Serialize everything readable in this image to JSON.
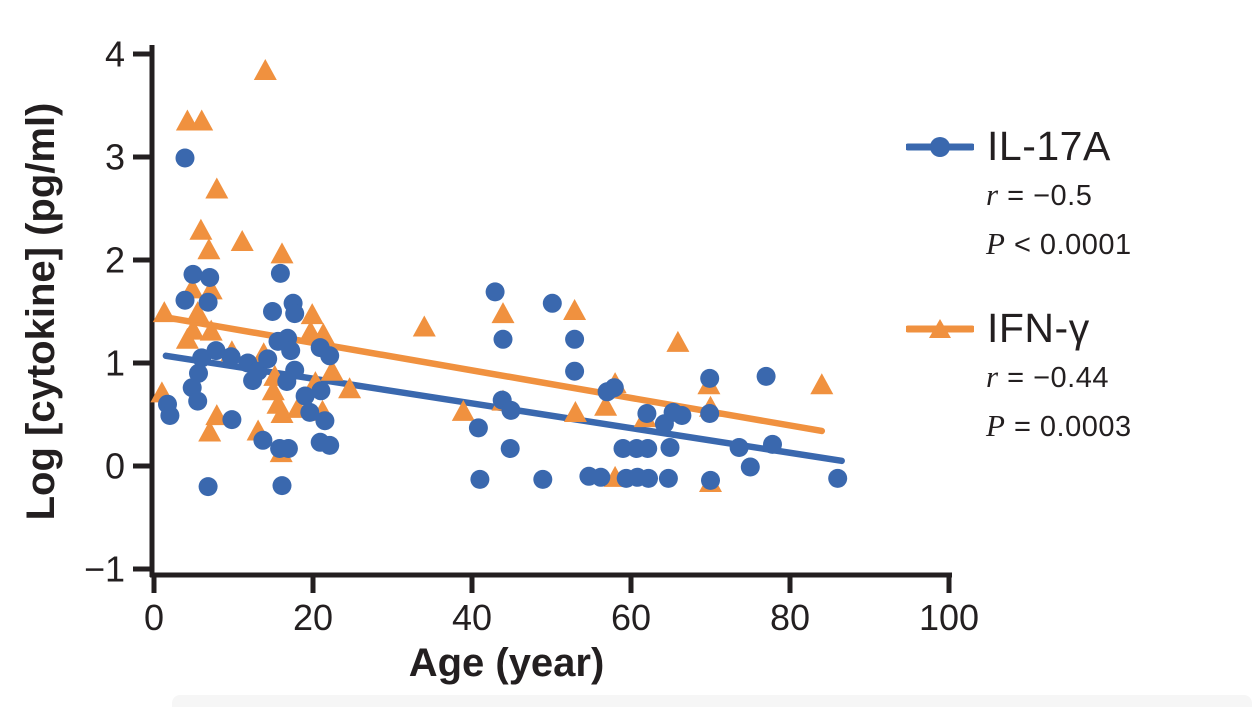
{
  "figure": {
    "background_color": "#ffffff",
    "footer_strip_color": "#f6f6f6"
  },
  "chart_data": {
    "type": "scatter",
    "title": "",
    "xlabel": "Age (year)",
    "ylabel": "Log [cytokine] (pg/ml)",
    "xlim": [
      0,
      100
    ],
    "ylim": [
      -1,
      4
    ],
    "x_ticks": [
      0,
      20,
      40,
      60,
      80,
      100
    ],
    "y_ticks": [
      -1,
      0,
      1,
      2,
      3,
      4
    ],
    "grid": false,
    "legend_position": "right",
    "axis_color": "#231f20",
    "series": [
      {
        "name": "IL-17A",
        "marker": "circle",
        "color": "#3a68ae",
        "stat_r_label": "r",
        "stat_r_value": "= −0.5",
        "stat_p_label": "P",
        "stat_p_value": "< 0.0001",
        "trend_line": {
          "x1": 1.5,
          "y1": 1.07,
          "x2": 86.5,
          "y2": 0.05
        },
        "points": [
          [
            3.9,
            2.99
          ],
          [
            4.9,
            1.86
          ],
          [
            7.0,
            1.83
          ],
          [
            15.9,
            1.87
          ],
          [
            3.9,
            1.61
          ],
          [
            6.8,
            1.59
          ],
          [
            14.9,
            1.5
          ],
          [
            17.5,
            1.58
          ],
          [
            17.7,
            1.48
          ],
          [
            6.0,
            1.05
          ],
          [
            5.6,
            0.9
          ],
          [
            7.8,
            1.12
          ],
          [
            9.7,
            1.06
          ],
          [
            11.8,
            1.0
          ],
          [
            12.4,
            0.83
          ],
          [
            13.1,
            0.92
          ],
          [
            14.3,
            1.04
          ],
          [
            15.6,
            1.21
          ],
          [
            16.8,
            1.24
          ],
          [
            17.2,
            1.12
          ],
          [
            17.7,
            0.93
          ],
          [
            20.9,
            1.15
          ],
          [
            22.1,
            1.07
          ],
          [
            16.7,
            0.82
          ],
          [
            19.0,
            0.68
          ],
          [
            21.0,
            0.73
          ],
          [
            1.7,
            0.6
          ],
          [
            2.0,
            0.49
          ],
          [
            4.8,
            0.76
          ],
          [
            5.5,
            0.63
          ],
          [
            9.8,
            0.45
          ],
          [
            13.7,
            0.25
          ],
          [
            15.8,
            0.17
          ],
          [
            16.9,
            0.17
          ],
          [
            19.6,
            0.52
          ],
          [
            20.9,
            0.23
          ],
          [
            22.1,
            0.2
          ],
          [
            21.5,
            0.44
          ],
          [
            6.8,
            -0.2
          ],
          [
            16.1,
            -0.19
          ],
          [
            42.9,
            1.69
          ],
          [
            50.1,
            1.58
          ],
          [
            43.9,
            1.23
          ],
          [
            52.9,
            1.23
          ],
          [
            52.9,
            0.92
          ],
          [
            43.8,
            0.64
          ],
          [
            44.9,
            0.54
          ],
          [
            40.8,
            0.37
          ],
          [
            44.8,
            0.17
          ],
          [
            57.0,
            0.72
          ],
          [
            57.9,
            0.76
          ],
          [
            41.0,
            -0.13
          ],
          [
            48.9,
            -0.13
          ],
          [
            59.0,
            0.17
          ],
          [
            60.7,
            0.17
          ],
          [
            62.1,
            0.17
          ],
          [
            64.9,
            0.18
          ],
          [
            62.0,
            0.51
          ],
          [
            64.2,
            0.41
          ],
          [
            65.3,
            0.52
          ],
          [
            66.4,
            0.49
          ],
          [
            69.9,
            0.85
          ],
          [
            69.9,
            0.51
          ],
          [
            73.6,
            0.18
          ],
          [
            77.8,
            0.21
          ],
          [
            77.0,
            0.87
          ],
          [
            75.0,
            -0.01
          ],
          [
            54.7,
            -0.1
          ],
          [
            56.2,
            -0.11
          ],
          [
            59.4,
            -0.12
          ],
          [
            60.8,
            -0.11
          ],
          [
            62.2,
            -0.12
          ],
          [
            64.7,
            -0.12
          ],
          [
            70.0,
            -0.14
          ],
          [
            86.0,
            -0.12
          ]
        ]
      },
      {
        "name": "IFN-γ",
        "marker": "triangle",
        "color": "#f0913f",
        "stat_r_label": "r",
        "stat_r_value": "= −0.44",
        "stat_p_label": "P",
        "stat_p_value": "= 0.0003",
        "trend_line": {
          "x1": 1.0,
          "y1": 1.45,
          "x2": 84.0,
          "y2": 0.34
        },
        "points": [
          [
            14.0,
            3.83
          ],
          [
            4.2,
            3.34
          ],
          [
            6.0,
            3.34
          ],
          [
            7.9,
            2.68
          ],
          [
            5.9,
            2.28
          ],
          [
            11.1,
            2.17
          ],
          [
            6.9,
            2.09
          ],
          [
            16.1,
            2.05
          ],
          [
            4.8,
            1.71
          ],
          [
            7.2,
            1.7
          ],
          [
            1.3,
            1.48
          ],
          [
            5.5,
            1.48
          ],
          [
            4.9,
            1.31
          ],
          [
            7.2,
            1.3
          ],
          [
            4.2,
            1.22
          ],
          [
            9.8,
            1.1
          ],
          [
            13.8,
            1.08
          ],
          [
            19.9,
            1.46
          ],
          [
            19.7,
            1.29
          ],
          [
            21.3,
            1.27
          ],
          [
            15.2,
            0.86
          ],
          [
            20.3,
            0.8
          ],
          [
            22.4,
            0.91
          ],
          [
            1.0,
            0.7
          ],
          [
            7.9,
            0.48
          ],
          [
            7.0,
            0.32
          ],
          [
            13.1,
            0.33
          ],
          [
            15.0,
            0.72
          ],
          [
            15.6,
            0.59
          ],
          [
            16.1,
            0.5
          ],
          [
            18.1,
            0.55
          ],
          [
            21.2,
            0.52
          ],
          [
            16.0,
            0.12
          ],
          [
            24.6,
            0.74
          ],
          [
            34.0,
            1.34
          ],
          [
            43.9,
            1.47
          ],
          [
            52.9,
            1.5
          ],
          [
            43.9,
            0.62
          ],
          [
            38.9,
            0.52
          ],
          [
            58.0,
            0.79
          ],
          [
            56.8,
            0.57
          ],
          [
            53.0,
            0.51
          ],
          [
            58.0,
            -0.12
          ],
          [
            65.9,
            1.19
          ],
          [
            61.8,
            0.46
          ],
          [
            69.8,
            0.78
          ],
          [
            70.0,
            0.56
          ],
          [
            70.0,
            -0.17
          ],
          [
            84.0,
            0.78
          ]
        ]
      }
    ]
  }
}
